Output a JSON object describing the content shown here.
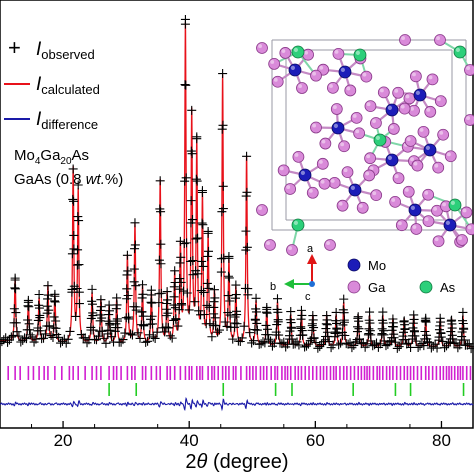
{
  "chart_data": {
    "type": "line",
    "xlabel_prefix": "2",
    "xlabel_theta": "θ",
    "xlabel_suffix": " (degree)",
    "xlim": [
      10,
      85
    ],
    "xticks": [
      20,
      40,
      60,
      80
    ],
    "ylim": [
      -0.12,
      1.0
    ],
    "legend": {
      "placement": "top-left",
      "entries": [
        {
          "symbol": "+",
          "I": "I",
          "sub": "observed",
          "color": "#000000"
        },
        {
          "symbol": "line",
          "I": "I",
          "sub": "calculated",
          "color": "#e8111a"
        },
        {
          "symbol": "line",
          "I": "I",
          "sub": "difference",
          "color": "#1a1aa8"
        }
      ]
    },
    "phase_label": {
      "line1": {
        "a": "Mo",
        "b": "4",
        "c": "Ga",
        "d": "20",
        "e": "As"
      },
      "line2": {
        "a": "GaAs (0.8 ",
        "b": "wt.",
        "c": "%)"
      }
    },
    "series": [
      {
        "name": "observed",
        "color": "#000000",
        "marker": "+"
      },
      {
        "name": "calculated",
        "color": "#e8111a"
      },
      {
        "name": "difference",
        "color": "#1a1aa8"
      }
    ],
    "peaks": [
      [
        12.4,
        0.2
      ],
      [
        14.5,
        0.13
      ],
      [
        16.2,
        0.14
      ],
      [
        17.6,
        0.18
      ],
      [
        18.7,
        0.15
      ],
      [
        21.6,
        0.55
      ],
      [
        22.4,
        0.48
      ],
      [
        24.6,
        0.16
      ],
      [
        26.0,
        0.14
      ],
      [
        27.3,
        0.12
      ],
      [
        28.5,
        0.14
      ],
      [
        30.2,
        0.28
      ],
      [
        31.4,
        0.38
      ],
      [
        32.6,
        0.18
      ],
      [
        34.0,
        0.16
      ],
      [
        35.4,
        0.52
      ],
      [
        36.5,
        0.16
      ],
      [
        37.7,
        0.22
      ],
      [
        38.6,
        0.3
      ],
      [
        39.4,
        1.0
      ],
      [
        40.4,
        0.72
      ],
      [
        41.2,
        0.62
      ],
      [
        42.1,
        0.46
      ],
      [
        43.0,
        0.34
      ],
      [
        44.0,
        0.16
      ],
      [
        45.3,
        0.85
      ],
      [
        46.3,
        0.26
      ],
      [
        47.4,
        0.18
      ],
      [
        49.1,
        0.6
      ],
      [
        50.6,
        0.14
      ],
      [
        52.3,
        0.12
      ],
      [
        54.0,
        0.14
      ],
      [
        56.1,
        0.1
      ],
      [
        57.8,
        0.11
      ],
      [
        59.6,
        0.1
      ],
      [
        61.8,
        0.1
      ],
      [
        63.3,
        0.1
      ],
      [
        64.5,
        0.14
      ],
      [
        66.8,
        0.1
      ],
      [
        68.6,
        0.1
      ],
      [
        70.7,
        0.1
      ],
      [
        72.3,
        0.09
      ],
      [
        74.1,
        0.09
      ],
      [
        75.6,
        0.1
      ],
      [
        77.5,
        0.09
      ],
      [
        79.8,
        0.09
      ],
      [
        81.6,
        0.09
      ],
      [
        83.4,
        0.1
      ]
    ],
    "ticks_Mo4Ga20As": [
      11.3,
      12.4,
      13.2,
      14.5,
      15.3,
      16.2,
      17.0,
      17.6,
      18.7,
      19.8,
      21.0,
      21.6,
      22.4,
      23.5,
      24.6,
      25.3,
      26.0,
      27.3,
      28.0,
      28.5,
      29.2,
      30.2,
      30.9,
      31.4,
      32.6,
      33.1,
      34.0,
      34.8,
      35.4,
      36.5,
      37.0,
      37.7,
      38.6,
      39.4,
      40.0,
      40.4,
      41.2,
      41.7,
      42.1,
      43.0,
      43.6,
      44.0,
      44.6,
      45.3,
      45.8,
      46.3,
      47.0,
      47.4,
      48.2,
      49.1,
      49.6,
      50.1,
      50.6,
      51.3,
      51.8,
      52.3,
      53.0,
      53.6,
      54.0,
      54.7,
      55.2,
      55.6,
      56.1,
      56.8,
      57.3,
      57.8,
      58.4,
      59.0,
      59.6,
      60.2,
      60.8,
      61.3,
      61.8,
      62.4,
      62.9,
      63.3,
      63.9,
      64.5,
      65.0,
      65.6,
      66.2,
      66.8,
      67.3,
      67.8,
      68.2,
      68.6,
      69.2,
      69.8,
      70.2,
      70.7,
      71.3,
      71.8,
      72.3,
      72.9,
      73.5,
      74.1,
      74.6,
      75.1,
      75.6,
      76.2,
      76.8,
      77.5,
      78.0,
      78.6,
      79.2,
      79.8,
      80.3,
      80.8,
      81.2,
      81.6,
      82.1,
      82.6,
      83.0,
      83.4,
      84.0,
      84.6
    ],
    "ticks_GaAs": [
      27.3,
      31.6,
      45.4,
      53.7,
      56.3,
      66.0,
      72.7,
      75.1,
      83.5
    ]
  },
  "structure": {
    "axis_a": "a",
    "axis_b": "b",
    "axis_c": "c",
    "legend": [
      {
        "label": "Mo",
        "color": "#1c1cb8"
      },
      {
        "label": "Ga",
        "color": "#d98ad9"
      },
      {
        "label": "As",
        "color": "#2ccf7a"
      }
    ]
  }
}
